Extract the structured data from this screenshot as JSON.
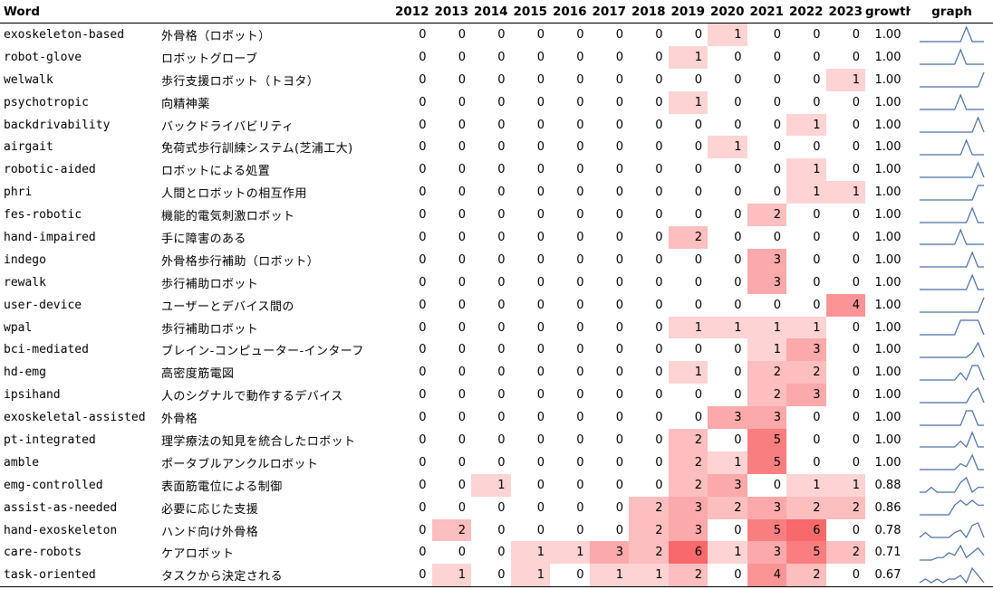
{
  "columns": {
    "word": "Word",
    "years": [
      "2012",
      "2013",
      "2014",
      "2015",
      "2016",
      "2017",
      "2018",
      "2019",
      "2020",
      "2021",
      "2022",
      "2023"
    ],
    "growth": "growth",
    "graph": "graph"
  },
  "max_count": 6,
  "cell_color": "#f8696b",
  "spark_color": "#4a6fa5",
  "rows": [
    {
      "word": "exoskeleton-based",
      "ja": "外骨格（ロボット）",
      "counts": [
        0,
        0,
        0,
        0,
        0,
        0,
        0,
        0,
        1,
        0,
        0,
        0
      ],
      "growth": "1.00"
    },
    {
      "word": "robot-glove",
      "ja": "ロボットグローブ",
      "counts": [
        0,
        0,
        0,
        0,
        0,
        0,
        0,
        1,
        0,
        0,
        0,
        0
      ],
      "growth": "1.00"
    },
    {
      "word": "welwalk",
      "ja": "歩行支援ロボット（トヨタ）",
      "counts": [
        0,
        0,
        0,
        0,
        0,
        0,
        0,
        0,
        0,
        0,
        0,
        1
      ],
      "growth": "1.00"
    },
    {
      "word": "psychotropic",
      "ja": "向精神薬",
      "counts": [
        0,
        0,
        0,
        0,
        0,
        0,
        0,
        1,
        0,
        0,
        0,
        0
      ],
      "growth": "1.00"
    },
    {
      "word": "backdrivability",
      "ja": "バックドライバビリティ",
      "counts": [
        0,
        0,
        0,
        0,
        0,
        0,
        0,
        0,
        0,
        0,
        1,
        0
      ],
      "growth": "1.00"
    },
    {
      "word": "airgait",
      "ja": "免荷式歩行訓練システム(芝浦工大)",
      "counts": [
        0,
        0,
        0,
        0,
        0,
        0,
        0,
        0,
        1,
        0,
        0,
        0
      ],
      "growth": "1.00"
    },
    {
      "word": "robotic-aided",
      "ja": "ロボットによる処置",
      "counts": [
        0,
        0,
        0,
        0,
        0,
        0,
        0,
        0,
        0,
        0,
        1,
        0
      ],
      "growth": "1.00"
    },
    {
      "word": "phri",
      "ja": "人間とロボットの相互作用",
      "counts": [
        0,
        0,
        0,
        0,
        0,
        0,
        0,
        0,
        0,
        0,
        1,
        1
      ],
      "growth": "1.00"
    },
    {
      "word": "fes-robotic",
      "ja": "機能的電気刺激ロボット",
      "counts": [
        0,
        0,
        0,
        0,
        0,
        0,
        0,
        0,
        0,
        2,
        0,
        0
      ],
      "growth": "1.00"
    },
    {
      "word": "hand-impaired",
      "ja": "手に障害のある",
      "counts": [
        0,
        0,
        0,
        0,
        0,
        0,
        0,
        2,
        0,
        0,
        0,
        0
      ],
      "growth": "1.00"
    },
    {
      "word": "indego",
      "ja": "外骨格歩行補助（ロボット）",
      "counts": [
        0,
        0,
        0,
        0,
        0,
        0,
        0,
        0,
        0,
        3,
        0,
        0
      ],
      "growth": "1.00"
    },
    {
      "word": "rewalk",
      "ja": "歩行補助ロボット",
      "counts": [
        0,
        0,
        0,
        0,
        0,
        0,
        0,
        0,
        0,
        3,
        0,
        0
      ],
      "growth": "1.00"
    },
    {
      "word": "user-device",
      "ja": "ユーザーとデバイス間の",
      "counts": [
        0,
        0,
        0,
        0,
        0,
        0,
        0,
        0,
        0,
        0,
        0,
        4
      ],
      "growth": "1.00"
    },
    {
      "word": "wpal",
      "ja": "歩行補助ロボット",
      "counts": [
        0,
        0,
        0,
        0,
        0,
        0,
        0,
        1,
        1,
        1,
        1,
        0
      ],
      "growth": "1.00"
    },
    {
      "word": "bci-mediated",
      "ja": "ブレイン-コンピューター-インターフ",
      "counts": [
        0,
        0,
        0,
        0,
        0,
        0,
        0,
        0,
        0,
        1,
        3,
        0
      ],
      "growth": "1.00"
    },
    {
      "word": "hd-emg",
      "ja": "高密度筋電図",
      "counts": [
        0,
        0,
        0,
        0,
        0,
        0,
        0,
        1,
        0,
        2,
        2,
        0
      ],
      "growth": "1.00"
    },
    {
      "word": "ipsihand",
      "ja": "人のシグナルで動作するデバイス",
      "counts": [
        0,
        0,
        0,
        0,
        0,
        0,
        0,
        0,
        0,
        2,
        3,
        0
      ],
      "growth": "1.00"
    },
    {
      "word": "exoskeletal-assisted",
      "ja": "外骨格",
      "counts": [
        0,
        0,
        0,
        0,
        0,
        0,
        0,
        0,
        3,
        3,
        0,
        0
      ],
      "growth": "1.00"
    },
    {
      "word": "pt-integrated",
      "ja": "理学療法の知見を統合したロボット",
      "counts": [
        0,
        0,
        0,
        0,
        0,
        0,
        0,
        2,
        0,
        5,
        0,
        0
      ],
      "growth": "1.00"
    },
    {
      "word": "amble",
      "ja": "ポータブルアンクルロボット",
      "counts": [
        0,
        0,
        0,
        0,
        0,
        0,
        0,
        2,
        1,
        5,
        0,
        0
      ],
      "growth": "1.00"
    },
    {
      "word": "emg-controlled",
      "ja": "表面筋電位による制御",
      "counts": [
        0,
        0,
        1,
        0,
        0,
        0,
        0,
        2,
        3,
        0,
        1,
        1
      ],
      "growth": "0.88"
    },
    {
      "word": "assist-as-needed",
      "ja": "必要に応じた支援",
      "counts": [
        0,
        0,
        0,
        0,
        0,
        0,
        2,
        3,
        2,
        3,
        2,
        2
      ],
      "growth": "0.86"
    },
    {
      "word": "hand-exoskeleton",
      "ja": "ハンド向け外骨格",
      "counts": [
        0,
        2,
        0,
        0,
        0,
        0,
        2,
        3,
        0,
        5,
        6,
        0
      ],
      "growth": "0.78"
    },
    {
      "word": "care-robots",
      "ja": "ケアロボット",
      "counts": [
        0,
        0,
        0,
        1,
        1,
        3,
        2,
        6,
        1,
        3,
        5,
        2
      ],
      "growth": "0.71"
    },
    {
      "word": "task-oriented",
      "ja": "タスクから決定される",
      "counts": [
        0,
        1,
        0,
        1,
        0,
        1,
        1,
        2,
        0,
        4,
        2,
        0
      ],
      "growth": "0.67"
    }
  ]
}
